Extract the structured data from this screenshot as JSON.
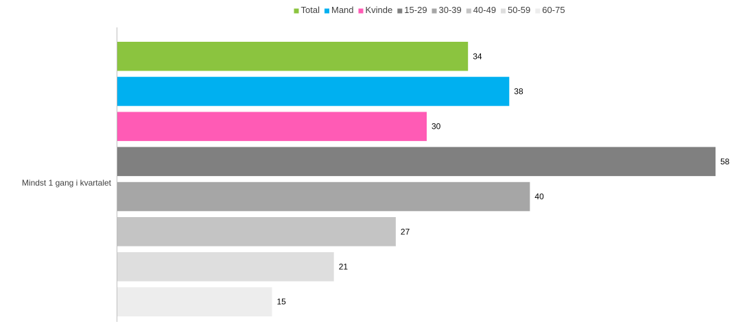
{
  "chart_data": {
    "type": "bar",
    "orientation": "horizontal",
    "title": "",
    "xlabel": "",
    "ylabel": "",
    "categories": [
      "Mindst 1 gang i kvartalet"
    ],
    "series": [
      {
        "name": "Total",
        "color": "#8BC43F",
        "values": [
          34
        ]
      },
      {
        "name": "Mand",
        "color": "#00B0F0",
        "values": [
          38
        ]
      },
      {
        "name": "Kvinde",
        "color": "#FF5BB5",
        "values": [
          30
        ]
      },
      {
        "name": "15-29",
        "color": "#808080",
        "values": [
          58
        ]
      },
      {
        "name": "30-39",
        "color": "#A6A6A6",
        "values": [
          40
        ]
      },
      {
        "name": "40-49",
        "color": "#C4C4C4",
        "values": [
          27
        ]
      },
      {
        "name": "50-59",
        "color": "#DEDEDE",
        "values": [
          21
        ]
      },
      {
        "name": "60-75",
        "color": "#EDEDED",
        "values": [
          15
        ]
      }
    ],
    "xlim": [
      0,
      58
    ],
    "grid": false,
    "legend_position": "top"
  }
}
